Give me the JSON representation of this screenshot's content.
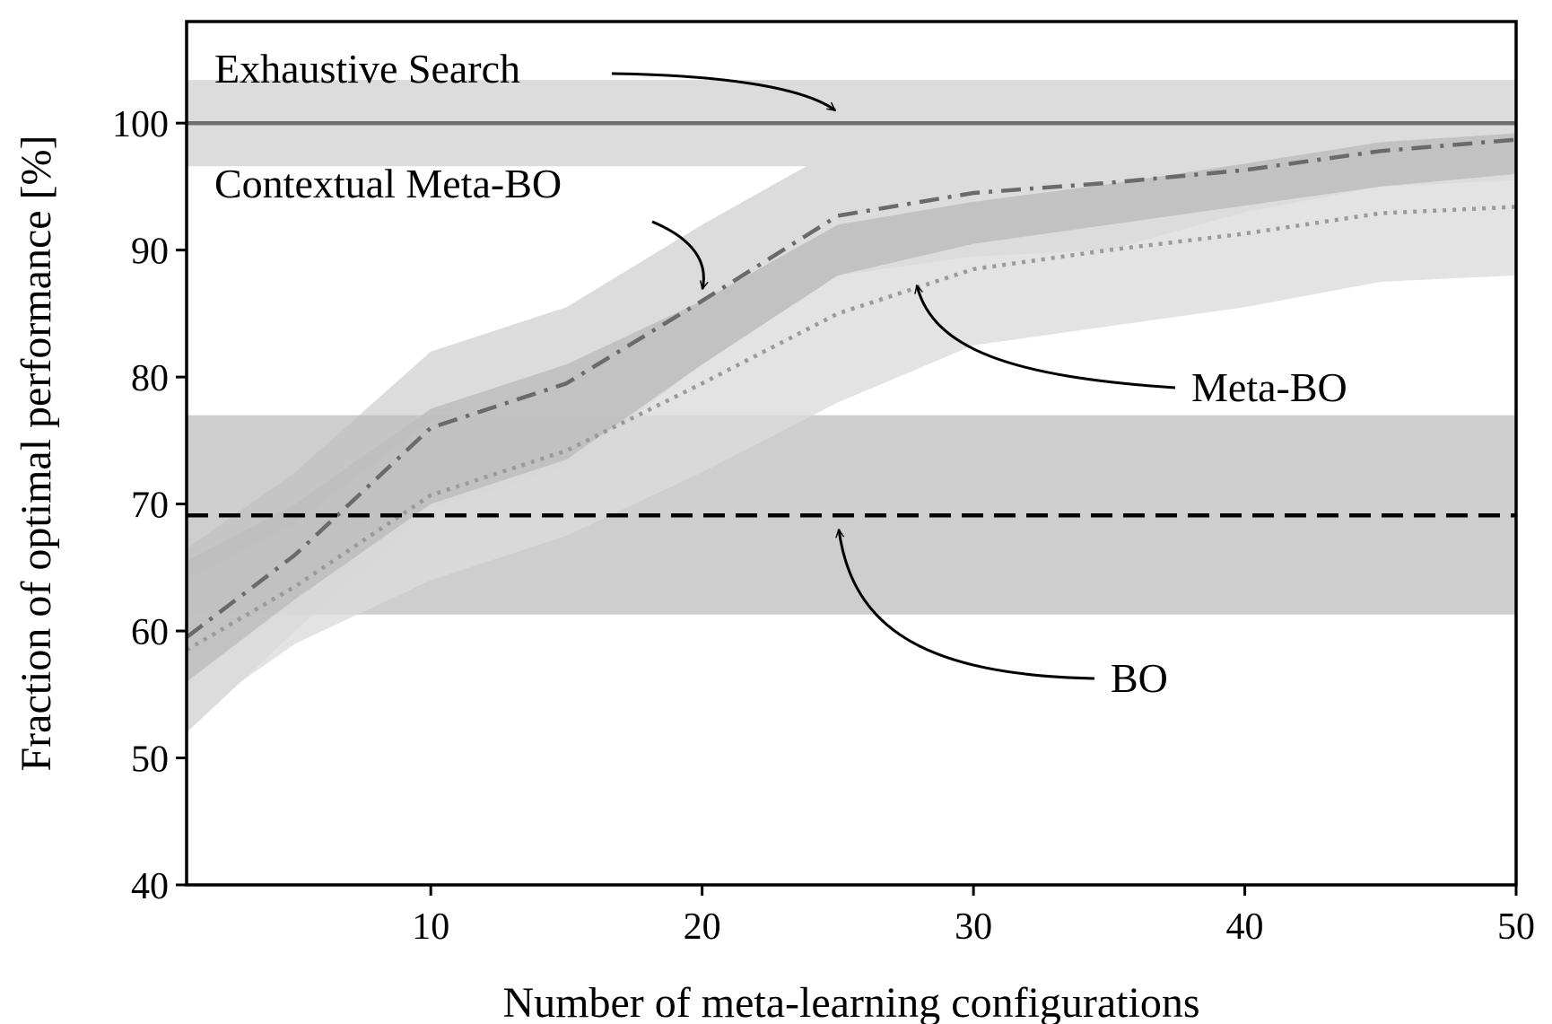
{
  "chart_data": {
    "type": "line",
    "xlabel": "Number of meta-learning configurations",
    "ylabel": "Fraction of optimal performance [%]",
    "xlim": [
      1,
      50
    ],
    "ylim": [
      40,
      108
    ],
    "xticks": [
      10,
      20,
      30,
      40,
      50
    ],
    "yticks": [
      40,
      50,
      60,
      70,
      80,
      90,
      100
    ],
    "grid": false,
    "legend": "none",
    "colors": {
      "exhaustive_line": "#6e6e6e",
      "contextual_line": "#6a6a6a",
      "meta_line": "#9a9a9a",
      "bo_line": "#000000",
      "band_light": "#dcdcdc",
      "band_dark": "#bdbdbd"
    },
    "series": [
      {
        "key": "exhaustive",
        "style": "solid",
        "x": [
          1,
          50
        ],
        "mean": [
          100,
          100
        ],
        "band": {
          "lower": [
            96.6,
            96.6
          ],
          "upper": [
            103.4,
            103.4
          ]
        }
      },
      {
        "key": "contextual",
        "style": "dashdot",
        "x": [
          1,
          5,
          10,
          15,
          20,
          25,
          30,
          35,
          40,
          45,
          50
        ],
        "mean": [
          59.5,
          66.0,
          76.0,
          79.5,
          86.0,
          92.7,
          94.5,
          95.3,
          96.3,
          97.8,
          98.7
        ],
        "band_outer": {
          "lower": [
            52.0,
            60.0,
            69.5,
            73.0,
            81.0,
            88.0,
            89.5,
            90.0,
            93.0,
            95.0,
            95.5
          ],
          "upper": [
            66.5,
            72.5,
            82.0,
            85.5,
            92.0,
            98.0,
            99.3,
            99.6,
            99.9,
            101.2,
            101.7
          ]
        },
        "band_inner": {
          "lower": [
            56.0,
            62.5,
            70.0,
            73.5,
            81.0,
            88.0,
            90.5,
            92.0,
            93.5,
            95.0,
            96.0
          ],
          "upper": [
            65.5,
            70.0,
            77.5,
            81.0,
            86.0,
            92.0,
            93.8,
            95.2,
            96.8,
            98.5,
            99.2
          ]
        }
      },
      {
        "key": "meta",
        "style": "dotted",
        "x": [
          1,
          5,
          10,
          15,
          20,
          25,
          30,
          35,
          40,
          45,
          50
        ],
        "mean": [
          58.5,
          63.5,
          70.7,
          74.2,
          79.5,
          85.0,
          88.5,
          90.0,
          91.3,
          92.9,
          93.4
        ],
        "band_inner": {
          "lower": [
            53.0,
            59.0,
            64.0,
            67.5,
            72.5,
            78.0,
            82.5,
            84.0,
            85.5,
            87.5,
            88.0
          ],
          "upper": [
            64.0,
            68.5,
            76.5,
            79.5,
            84.0,
            89.0,
            91.5,
            93.0,
            94.5,
            96.0,
            96.5
          ]
        }
      },
      {
        "key": "bo",
        "style": "dashed",
        "x": [
          1,
          50
        ],
        "mean": [
          69.1,
          69.1
        ],
        "band": {
          "lower": [
            61.3,
            61.3
          ],
          "upper": [
            77.0,
            77.0
          ]
        }
      }
    ],
    "annotations": [
      {
        "text": "Exhaustive Search",
        "points_to": [
          25,
          100
        ]
      },
      {
        "text": "Contextual Meta-BO",
        "points_to": [
          20,
          86.5
        ]
      },
      {
        "text": "Meta-BO",
        "points_to": [
          28,
          87.2
        ]
      },
      {
        "text": "BO",
        "points_to": [
          25,
          68.8
        ]
      }
    ]
  }
}
